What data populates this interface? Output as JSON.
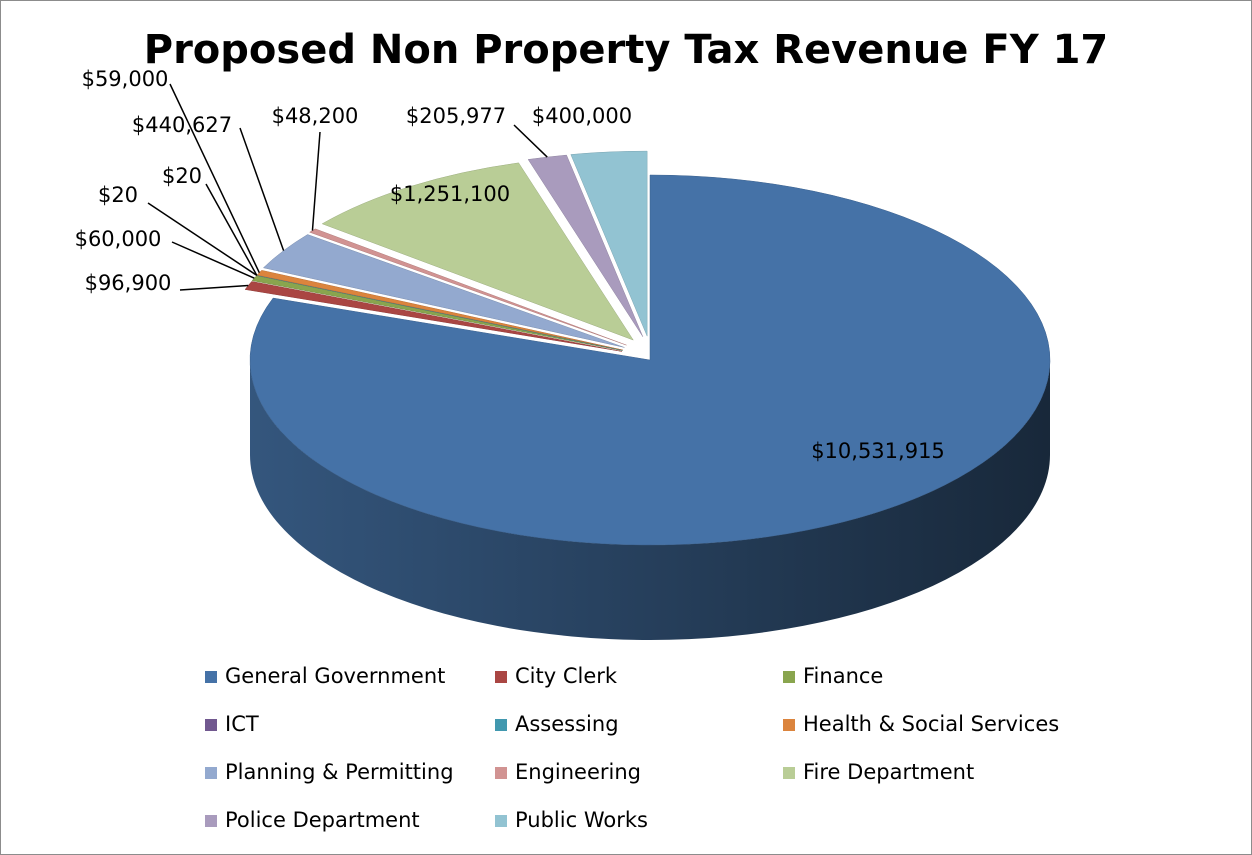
{
  "chart_data": {
    "type": "pie",
    "title": "Proposed Non Property Tax Revenue FY 17",
    "categories": [
      "General Government",
      "City Clerk",
      "Finance",
      "ICT",
      "Assessing",
      "Health & Social Services",
      "Planning & Permitting",
      "Engineering",
      "Fire Department",
      "Police Department",
      "Public Works"
    ],
    "values": [
      10531915,
      96900,
      60000,
      20,
      20,
      59000,
      440627,
      48200,
      1251100,
      205977,
      400000
    ],
    "value_labels": [
      "$10,531,915",
      "$96,900",
      "$60,000",
      "$20",
      "$20",
      "$59,000",
      "$440,627",
      "$48,200",
      "$1,251,100",
      "$205,977",
      "$400,000"
    ],
    "colors": [
      "#4572A7",
      "#AA4643",
      "#89A54E",
      "#71588F",
      "#4198AF",
      "#DB843D",
      "#93A9CF",
      "#D19392",
      "#B9CD96",
      "#A99BBD",
      "#92C3D2"
    ],
    "legend": "bottom"
  }
}
